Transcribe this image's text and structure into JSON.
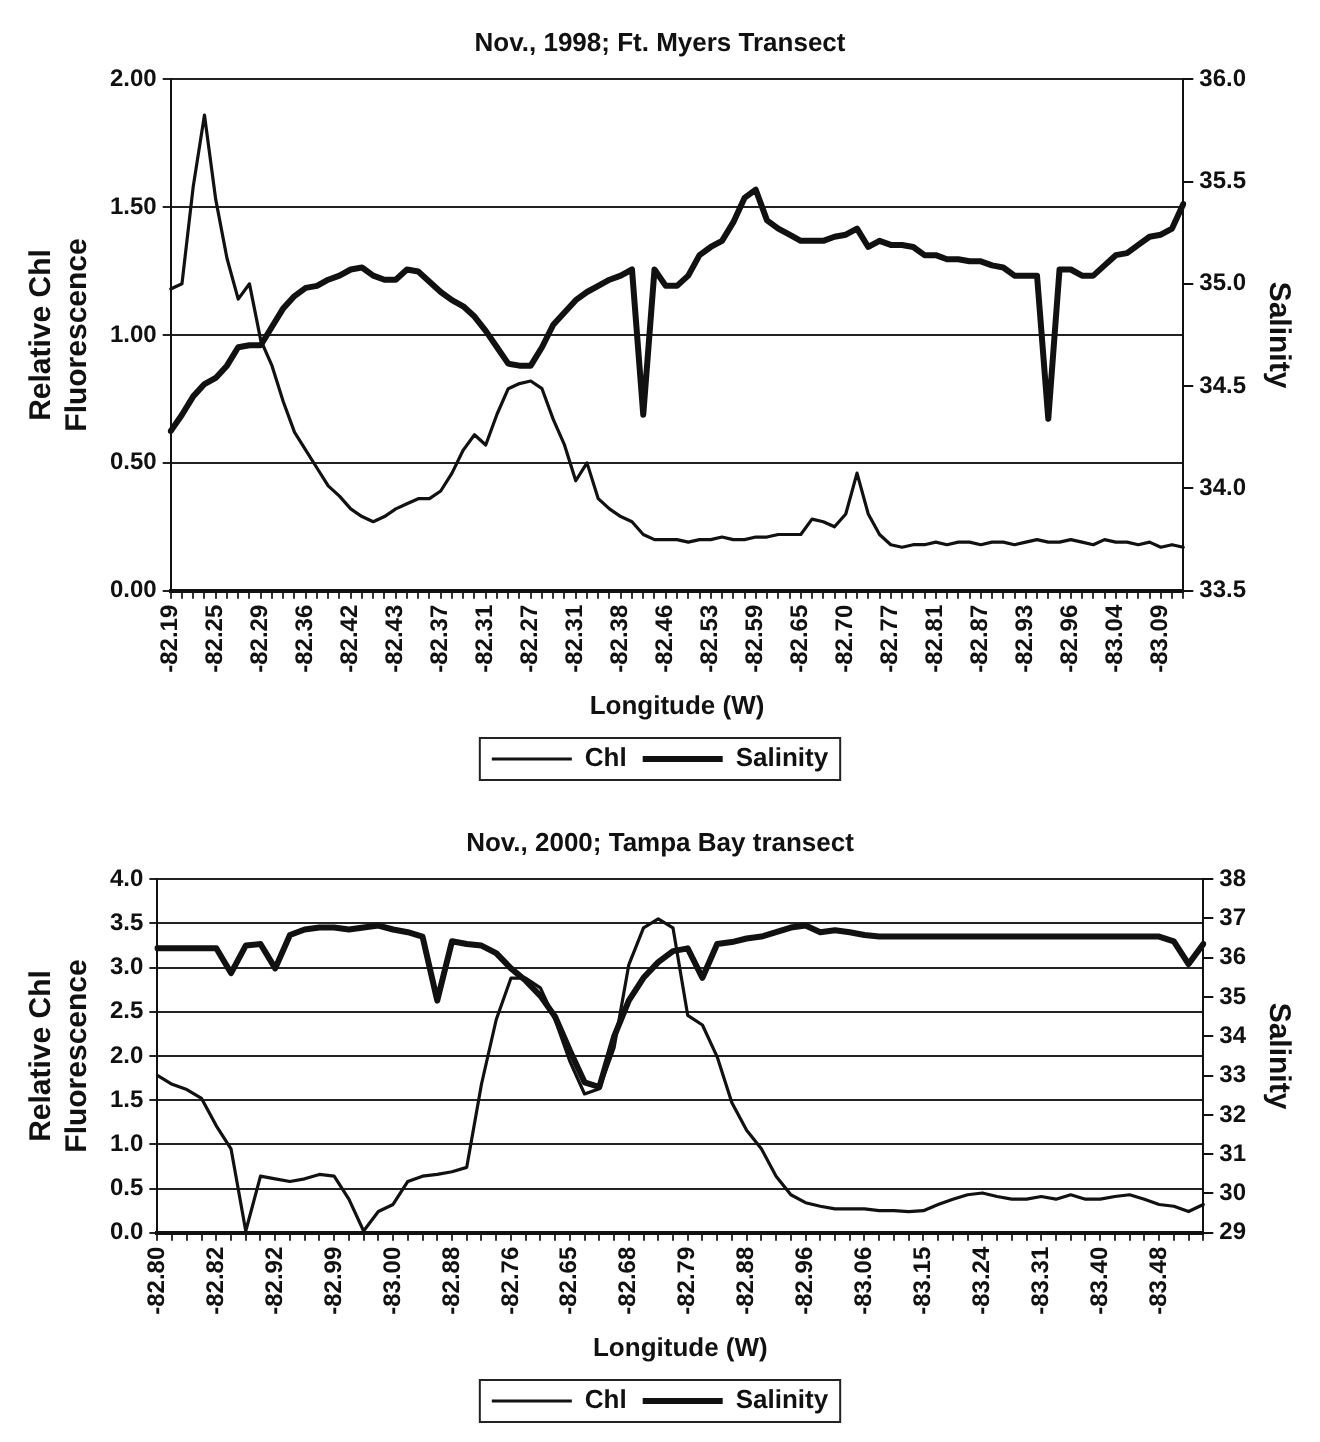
{
  "chart_data": [
    {
      "type": "line",
      "title": "Nov., 1998; Ft. Myers Transect",
      "xlabel": "Longitude (W)",
      "ylabel": "Relative Chl Fluorescence",
      "y2label": "Salinity",
      "categories": [
        "-82.19",
        null,
        null,
        null,
        "-82.25",
        null,
        null,
        null,
        "-82.29",
        null,
        null,
        null,
        "-82.36",
        null,
        null,
        null,
        "-82.42",
        null,
        null,
        null,
        "-82.43",
        null,
        null,
        null,
        "-82.37",
        null,
        null,
        null,
        "-82.31",
        null,
        null,
        null,
        "-82.27",
        null,
        null,
        null,
        "-82.31",
        null,
        null,
        null,
        "-82.38",
        null,
        null,
        null,
        "-82.46",
        null,
        null,
        null,
        "-82.53",
        null,
        null,
        null,
        "-82.59",
        null,
        null,
        null,
        "-82.65",
        null,
        null,
        null,
        "-82.70",
        null,
        null,
        null,
        "-82.77",
        null,
        null,
        null,
        "-82.81",
        null,
        null,
        null,
        "-82.87",
        null,
        null,
        null,
        "-82.93",
        null,
        null,
        null,
        "-82.96",
        null,
        null,
        null,
        "-83.04",
        null,
        null,
        null,
        "-83.09",
        null,
        null
      ],
      "series": [
        {
          "name": "Chl",
          "color": "#111111",
          "values": [
            1.18,
            1.2,
            1.58,
            1.86,
            1.53,
            1.3,
            1.14,
            1.2,
            0.98,
            0.88,
            0.74,
            0.62,
            0.55,
            0.48,
            0.41,
            0.37,
            0.32,
            0.29,
            0.27,
            0.29,
            0.32,
            0.34,
            0.36,
            0.36,
            0.39,
            0.46,
            0.55,
            0.61,
            0.57,
            0.69,
            0.79,
            0.81,
            0.82,
            0.79,
            0.67,
            0.57,
            0.43,
            0.5,
            0.36,
            0.32,
            0.29,
            0.27,
            0.22,
            0.2,
            0.2,
            0.2,
            0.19,
            0.2,
            0.2,
            0.21,
            0.2,
            0.2,
            0.21,
            0.21,
            0.22,
            0.22,
            0.22,
            0.28,
            0.27,
            0.25,
            0.3,
            0.46,
            0.3,
            0.22,
            0.18,
            0.17,
            0.18,
            0.18,
            0.19,
            0.18,
            0.19,
            0.19,
            0.18,
            0.19,
            0.19,
            0.18,
            0.19,
            0.2,
            0.19,
            0.19,
            0.2,
            0.19,
            0.18,
            0.2,
            0.19,
            0.19,
            0.18,
            0.19,
            0.17,
            0.18,
            0.17
          ]
        },
        {
          "name": "Salinity",
          "color": "#111111",
          "axis": "y2",
          "values": [
            34.28,
            34.36,
            34.45,
            34.51,
            34.54,
            34.6,
            34.69,
            34.7,
            34.7,
            34.79,
            34.88,
            34.94,
            34.98,
            34.99,
            35.02,
            35.04,
            35.07,
            35.08,
            35.04,
            35.02,
            35.02,
            35.07,
            35.06,
            35.01,
            34.96,
            34.92,
            34.89,
            34.84,
            34.77,
            34.69,
            34.61,
            34.6,
            34.6,
            34.69,
            34.8,
            34.86,
            34.92,
            34.96,
            34.99,
            35.02,
            35.04,
            35.07,
            34.36,
            35.07,
            34.99,
            34.99,
            35.04,
            35.14,
            35.18,
            35.21,
            35.3,
            35.42,
            35.46,
            35.31,
            35.27,
            35.24,
            35.21,
            35.21,
            35.21,
            35.23,
            35.24,
            35.27,
            35.18,
            35.21,
            35.19,
            35.19,
            35.18,
            35.14,
            35.14,
            35.12,
            35.12,
            35.11,
            35.11,
            35.09,
            35.08,
            35.04,
            35.04,
            35.04,
            34.34,
            35.07,
            35.07,
            35.04,
            35.04,
            35.09,
            35.14,
            35.15,
            35.19,
            35.23,
            35.24,
            35.27,
            35.39
          ]
        }
      ],
      "ylim": [
        0,
        2
      ],
      "yticks": [
        {
          "value": 0,
          "label": "0.00"
        },
        {
          "value": 0.5,
          "label": "0.50"
        },
        {
          "value": 1,
          "label": "1.00"
        },
        {
          "value": 1.5,
          "label": "1.50"
        },
        {
          "value": 2,
          "label": "2.00"
        }
      ],
      "y2lim": [
        33.5,
        36
      ],
      "y2ticks": [
        33.5,
        {
          "value": 34,
          "label": "34.0"
        },
        34.5,
        {
          "value": 35,
          "label": "35.0"
        },
        35.5,
        {
          "value": 36,
          "label": "36.0"
        }
      ],
      "grid": "y",
      "legend": "bottom",
      "marker": "none",
      "line_style": "solid"
    },
    {
      "type": "line",
      "title": "Nov., 2000; Tampa Bay transect",
      "xlabel": "Longitude (W)",
      "ylabel": "Relative Chl Fluorescence",
      "y2label": "Salinity",
      "categories": [
        "-82.80",
        null,
        null,
        null,
        "-82.82",
        null,
        null,
        null,
        "-82.92",
        null,
        null,
        null,
        "-82.99",
        null,
        null,
        null,
        "-83.00",
        null,
        null,
        null,
        "-82.88",
        null,
        null,
        null,
        "-82.76",
        null,
        null,
        null,
        "-82.65",
        null,
        null,
        null,
        "-82.68",
        null,
        null,
        null,
        "-82.79",
        null,
        null,
        null,
        "-82.88",
        null,
        null,
        null,
        "-82.96",
        null,
        null,
        null,
        "-83.06",
        null,
        null,
        null,
        "-83.15",
        null,
        null,
        null,
        "-83.24",
        null,
        null,
        null,
        "-83.31",
        null,
        null,
        null,
        "-83.40",
        null,
        null,
        null,
        "-83.48",
        null,
        null,
        null
      ],
      "series": [
        {
          "name": "Chl",
          "color": "#111111",
          "values": [
            1.78,
            1.68,
            1.62,
            1.52,
            1.21,
            0.95,
            0.02,
            0.64,
            0.61,
            0.58,
            0.61,
            0.66,
            0.64,
            0.38,
            0.02,
            0.24,
            0.32,
            0.58,
            0.64,
            0.66,
            0.69,
            0.74,
            1.68,
            2.41,
            2.88,
            2.88,
            2.77,
            2.41,
            1.94,
            1.57,
            1.63,
            2.09,
            3.03,
            3.45,
            3.55,
            3.45,
            2.46,
            2.35,
            1.99,
            1.47,
            1.16,
            0.95,
            0.64,
            0.43,
            0.34,
            0.3,
            0.27,
            0.27,
            0.27,
            0.25,
            0.25,
            0.24,
            0.25,
            0.32,
            0.38,
            0.43,
            0.45,
            0.41,
            0.38,
            0.38,
            0.41,
            0.38,
            0.43,
            0.38,
            0.38,
            0.41,
            0.43,
            0.38,
            0.32,
            0.3,
            0.24,
            0.32
          ]
        },
        {
          "name": "Salinity",
          "color": "#111111",
          "axis": "y2",
          "values": [
            36.24,
            36.24,
            36.24,
            36.24,
            36.24,
            35.61,
            36.31,
            36.35,
            35.73,
            36.58,
            36.72,
            36.77,
            36.77,
            36.72,
            36.77,
            36.82,
            36.72,
            36.65,
            36.54,
            34.91,
            36.42,
            36.35,
            36.31,
            36.12,
            35.73,
            35.42,
            35.03,
            34.5,
            33.64,
            32.83,
            32.71,
            33.99,
            34.91,
            35.49,
            35.89,
            36.17,
            36.24,
            35.49,
            36.35,
            36.4,
            36.49,
            36.54,
            36.65,
            36.77,
            36.82,
            36.65,
            36.7,
            36.65,
            36.58,
            36.54,
            36.54,
            36.54,
            36.54,
            36.54,
            36.54,
            36.54,
            36.54,
            36.54,
            36.54,
            36.54,
            36.54,
            36.54,
            36.54,
            36.54,
            36.54,
            36.54,
            36.54,
            36.54,
            36.54,
            36.42,
            35.84,
            36.35
          ]
        }
      ],
      "ylim": [
        0,
        4
      ],
      "yticks": [
        {
          "value": 0,
          "label": "0.0"
        },
        0.5,
        {
          "value": 1,
          "label": "1.0"
        },
        1.5,
        {
          "value": 2,
          "label": "2.0"
        },
        2.5,
        {
          "value": 3,
          "label": "3.0"
        },
        3.5,
        {
          "value": 4,
          "label": "4.0"
        }
      ],
      "y2lim": [
        29,
        38
      ],
      "y2ticks": [
        29,
        30,
        31,
        32,
        33,
        34,
        35,
        36,
        37,
        38
      ],
      "grid": "y",
      "legend": "bottom",
      "marker": "none",
      "line_style": "solid"
    }
  ]
}
